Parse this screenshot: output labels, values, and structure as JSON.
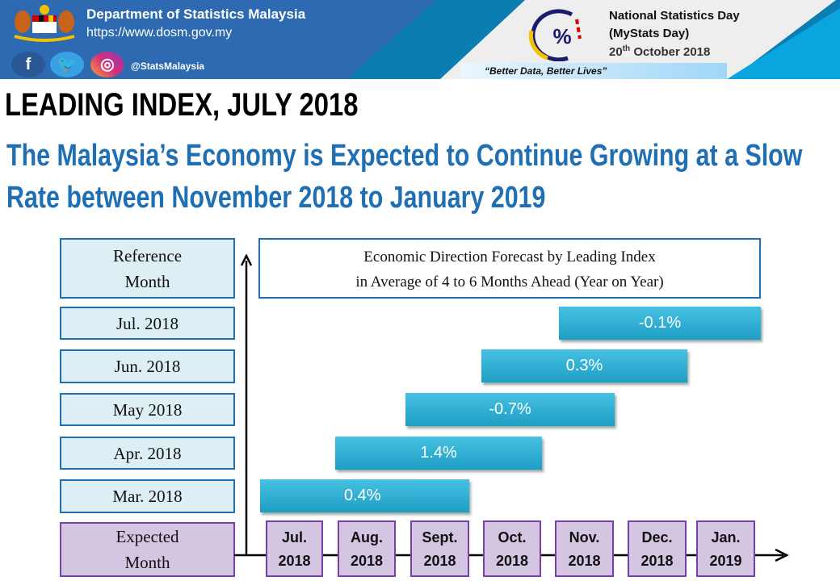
{
  "header": {
    "org": "Department of Statistics Malaysia",
    "url": "https://www.dosm.gov.my",
    "handle": "@StatsMalaysia",
    "social": [
      "facebook-icon",
      "twitter-icon",
      "instagram-icon"
    ],
    "event_line1": "National Statistics Day",
    "event_line2": "(MyStats Day)",
    "event_date_day": "20",
    "event_date_sup": "th",
    "event_date_rest": "October 2018",
    "slogan": "“Better Data, Better Lives”"
  },
  "title": "LEADING INDEX, JULY 2018",
  "subtitle_line1": "The Malaysia’s Economy is Expected to Continue Growing at a Slow",
  "subtitle_line2": "Rate between November 2018 to January 2019",
  "diagram": {
    "ref_label_1": "Reference",
    "ref_label_2": "Month",
    "forecast_title_1": "Economic Direction Forecast by Leading Index",
    "forecast_title_2": "in Average of 4 to 6 Months Ahead (Year on Year)",
    "rows": [
      {
        "ref": "Jul. 2018",
        "value": "-0.1%"
      },
      {
        "ref": "Jun. 2018",
        "value": "0.3%"
      },
      {
        "ref": "May 2018",
        "value": "-0.7%"
      },
      {
        "ref": "Apr. 2018",
        "value": "1.4%"
      },
      {
        "ref": "Mar. 2018",
        "value": "0.4%"
      }
    ],
    "exp_label_1": "Expected",
    "exp_label_2": "Month",
    "months": [
      [
        "Jul.",
        "2018"
      ],
      [
        "Aug.",
        "2018"
      ],
      [
        "Sept.",
        "2018"
      ],
      [
        "Oct.",
        "2018"
      ],
      [
        "Nov.",
        "2018"
      ],
      [
        "Dec.",
        "2018"
      ],
      [
        "Jan.",
        "2019"
      ]
    ],
    "colors": {
      "blue": "#1f6fb5",
      "bar": "#2ab0d8",
      "purple": "#7a3fa6"
    }
  }
}
